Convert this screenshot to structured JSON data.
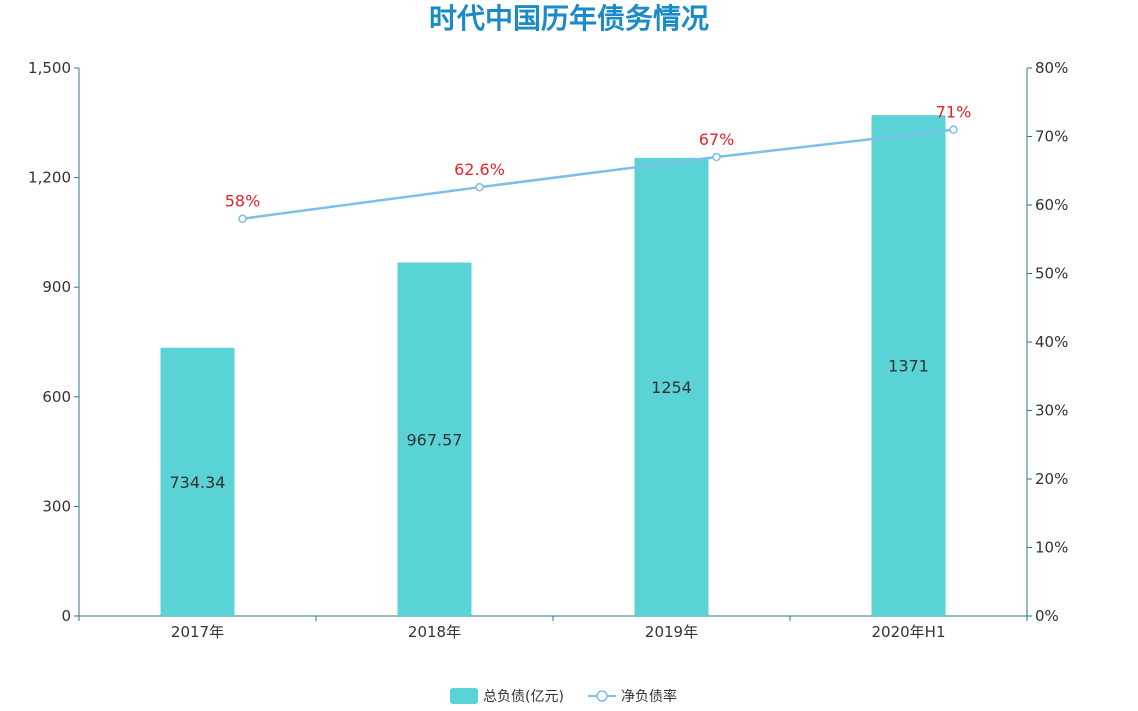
{
  "chart_data": {
    "type": "bar",
    "title": "时代中国历年债务情况",
    "categories": [
      "2017年",
      "2018年",
      "2019年",
      "2020年H1"
    ],
    "series": [
      {
        "name": "总负债(亿元)",
        "type": "bar",
        "axis": "left",
        "values": [
          734.34,
          967.57,
          1254,
          1371
        ],
        "labels": [
          "734.34",
          "967.57",
          "1254",
          "1371"
        ]
      },
      {
        "name": "净负债率",
        "type": "line",
        "axis": "right",
        "values": [
          58,
          62.6,
          67,
          71
        ],
        "labels": [
          "58%",
          "62.6%",
          "67%",
          "71%"
        ]
      }
    ],
    "y_left": {
      "min": 0,
      "max": 1500,
      "ticks": [
        "0",
        "300",
        "600",
        "900",
        "1,200",
        "1,500"
      ]
    },
    "y_right": {
      "min": 0,
      "max": 80,
      "ticks": [
        "0%",
        "10%",
        "20%",
        "30%",
        "40%",
        "50%",
        "60%",
        "70%",
        "80%"
      ]
    },
    "legend_position": "bottom-center",
    "grid": false
  },
  "colors": {
    "title": "#1a8bc7",
    "bar": "#5ad3d6",
    "line": "#7fbee9",
    "line_label": "#e8242b",
    "axis": "#2b7a8a",
    "text": "#333333"
  }
}
